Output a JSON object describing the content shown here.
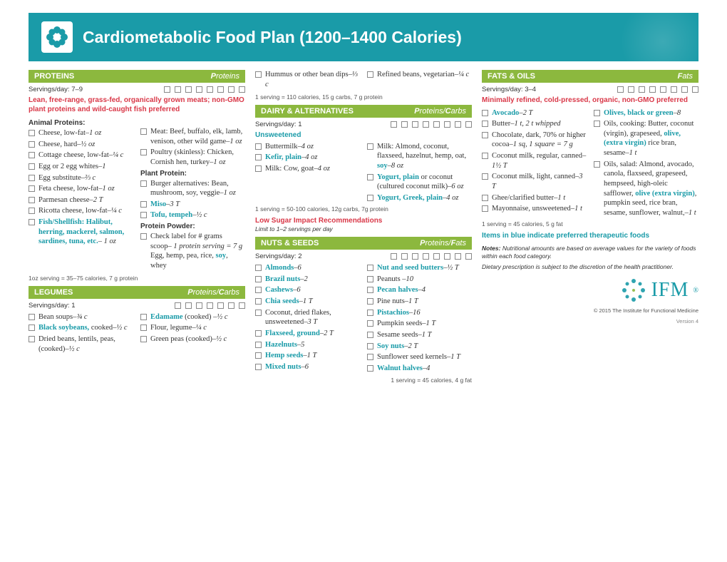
{
  "header": {
    "title": "Cardiometabolic Food Plan (1200–1400 Calories)"
  },
  "colors": {
    "teal": "#1a9ba8",
    "green": "#8cb83e",
    "red": "#d93848",
    "text": "#333333"
  },
  "proteins": {
    "title": "PROTEINS",
    "macro": "Proteins",
    "servings": "Servings/day: 7–9",
    "checkboxes": 8,
    "note": "Lean, free-range, grass-fed, organically grown meats; non-GMO plant proteins and wild-caught fish preferred",
    "animal_label": "Animal Proteins:",
    "plant_label": "Plant Protein:",
    "powder_label": "Protein Powder:",
    "serving_info": "1oz serving = 35–75 calories, 7 g protein",
    "items_a": [
      "Cheese, low-fat–<i>1 oz</i>",
      "Cheese, hard–<i>½ oz</i>",
      "Cottage cheese, low-fat–<i>¼ c</i>",
      "Egg or 2 egg whites–<i>1</i>",
      "Egg substitute–<i>⅔ c</i>",
      "Feta cheese, low-fat–<i>1 oz</i>",
      "Parmesan cheese–<i>2 T</i>",
      "Ricotta cheese, low-fat–<i>¼ c</i>",
      "<span class='blue'>Fish/Shellfish: Halibut, herring, mackerel, salmon, sardines, tuna, etc.</span>– <i>1 oz</i>"
    ],
    "items_b": [
      "Meat: Beef, buffalo, elk, lamb, venison, other wild game–<i>1 oz</i>",
      "Poultry (skinless): Chicken, Cornish hen, turkey–<i>1 oz</i>"
    ],
    "items_plant": [
      "Burger alternatives: Bean, mushroom, soy, veggie–<i>1 oz</i>",
      "<span class='blue'>Miso</span>–<i>3 T</i>",
      "<span class='blue'>Tofu, tempeh</span>–<i>½ c</i>"
    ],
    "items_powder": [
      "Check label for # grams scoop– <i>1 protein serving = 7 g</i> Egg, hemp, pea, rice, <span class='blue'>soy</span>, whey"
    ]
  },
  "legumes": {
    "title": "LEGUMES",
    "macro_p": "P",
    "macro_text": "roteins/",
    "macro_c": "C",
    "macro_text2": "arbs",
    "servings": "Servings/day: 1",
    "checkboxes": 7,
    "items": [
      "Bean soups–<i>¾ c</i>",
      "<span class='blue'>Black soybeans,</span> cooked–<i>½ c</i>",
      "Dried beans, lentils, peas, (cooked)–<i>½ c</i>",
      "<span class='blue'>Edamame</span> (cooked) –<i>½ c</i>",
      "Flour, legume–<i>¼ c</i>",
      "Green peas (cooked)–<i>½ c</i>"
    ]
  },
  "legumes_cont": {
    "items": [
      "Hummus or other bean dips–<i>⅓ c</i>",
      "Refined beans, vegetarian–<i>¼ c</i>"
    ],
    "serving_info": "1 serving = 110 calories, 15 g carbs, 7 g protein"
  },
  "dairy": {
    "title": "DAIRY & ALTERNATIVES",
    "servings": "Servings/day: 1",
    "checkboxes": 8,
    "sub": "Unsweetened",
    "items": [
      "Buttermilk–<i>4 oz</i>",
      "<span class='blue'>Kefir, plain</span>–<i>4 oz</i>",
      "Milk: Cow, goat–<i>4 oz</i>",
      "Milk: Almond, coconut, flaxseed, hazelnut, hemp, oat, <span class='blue'>soy</span>–<i>8 oz</i>",
      "<span class='blue'>Yogurt, plain</span> or coconut (cultured coconut milk)–<i>6 oz</i>",
      "<span class='blue'>Yogurt, Greek, plain</span>–<i>4 oz</i>"
    ],
    "serving_info": "1 serving = 50-100 calories, 12g carbs, 7g protein",
    "low_sugar": "Low Sugar Impact Recommendations",
    "limit": "Limit to 1–2 servings per day"
  },
  "nuts": {
    "title": "NUTS & SEEDS",
    "servings": "Servings/day: 2",
    "checkboxes": 8,
    "items": [
      "<span class='blue'>Almonds</span>–<i>6</i>",
      "<span class='blue'>Brazil nuts</span>–<i>2</i>",
      "<span class='blue'>Cashews</span>–<i>6</i>",
      "<span class='blue'>Chia seeds</span>–<i>1 T</i>",
      "Coconut, dried flakes, unsweetened–<i>3 T</i>",
      "<span class='blue'>Flaxseed, ground</span>–<i>2 T</i>",
      "<span class='blue'>Hazelnuts</span>–<i>5</i>",
      "<span class='blue'>Hemp seeds</span>–<i>1 T</i>",
      "<span class='blue'>Mixed nuts</span>–<i>6</i>",
      "<span class='blue'>Nut and seed butters</span>–<i>½ T</i>",
      "Peanuts –<i>10</i>",
      "<span class='blue'>Pecan halves</span>–<i>4</i>",
      "Pine nuts–<i>1 T</i>",
      "<span class='blue'>Pistachios</span>–<i>16</i>",
      "Pumpkin seeds–<i>1 T</i>",
      "Sesame seeds–<i>1 T</i>",
      "<span class='blue'>Soy nuts</span>–<i>2 T</i>",
      "Sunflower seed kernels–<i>1 T</i>",
      "<span class='blue'>Walnut halves</span>–<i>4</i>"
    ],
    "serving_info": "1 serving = 45 calories, 4 g fat"
  },
  "fats": {
    "title": "FATS & OILS",
    "macro": "Fats",
    "servings": "Servings/day: 3–4",
    "checkboxes": 8,
    "note": "Minimally refined, cold-pressed, organic, non-GMO preferred",
    "items": [
      "<span class='blue'>Avocado</span>–<i>2 T</i>",
      "Butter–<i>1 t, 2 t whipped</i>",
      "Chocolate, dark, 70% or higher cocoa–<i>1 sq, 1 square = 7 g</i>",
      "Coconut milk, regular, canned– <i>1½ T</i>",
      "Coconut milk, light, canned–<i>3 T</i>",
      "Ghee/clarified butter–<i>1 t</i>",
      "Mayonnaise, unsweetened–<i>1 t</i>",
      "<span class='blue'>Olives, black or green</span>–<i>8</i>",
      "Oils, cooking: Butter, coconut (virgin), grapeseed, <span class='blue'>olive, (extra virgin)</span> rice bran, sesame–<i>1 t</i>",
      "Oils, salad: Almond, avocado, canola, flaxseed, grapeseed, hempseed, high-oleic safflower, <span class='blue'>olive (extra virgin)</span>, pumpkin seed, rice bran, sesame, sunflower, walnut,–<i>1 t</i>"
    ],
    "serving_info": "1 serving = 45 calories, 5 g fat",
    "preferred_note": "Items in blue indicate preferred therapeutic foods",
    "notes_label": "Notes:",
    "notes_text": " Nutritional amounts are based on average values for the variety of foods within each food category.",
    "notes_text2": "Dietary prescription is subject to the discretion of the health practitioner."
  },
  "footer": {
    "copyright": "© 2015 The Institute for Functional Medicine",
    "version": "Version 4",
    "logo": "IFM"
  }
}
